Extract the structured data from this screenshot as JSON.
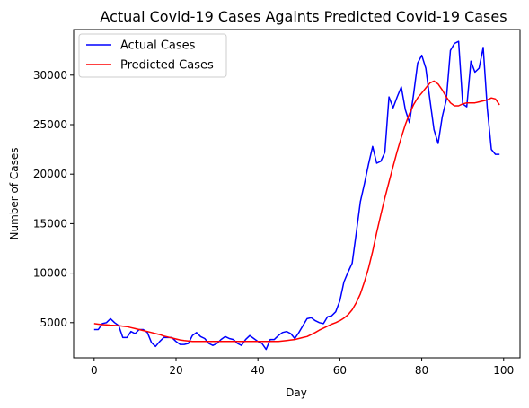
{
  "chart_data": {
    "type": "line",
    "title": "Actual Covid-19 Cases Againts Predicted Covid-19 Cases",
    "xlabel": "Day",
    "ylabel": "Number of Cases",
    "xlim": [
      -5,
      104
    ],
    "ylim": [
      1450,
      34600
    ],
    "xticks": [
      0,
      20,
      40,
      60,
      80,
      100
    ],
    "yticks": [
      5000,
      10000,
      15000,
      20000,
      25000,
      30000
    ],
    "grid": false,
    "legend_position": "upper-left",
    "series": [
      {
        "name": "Actual Cases",
        "color": "#0000ff",
        "x": [
          0,
          1,
          2,
          3,
          4,
          5,
          6,
          7,
          8,
          9,
          10,
          11,
          12,
          13,
          14,
          15,
          16,
          17,
          18,
          19,
          20,
          21,
          22,
          23,
          24,
          25,
          26,
          27,
          28,
          29,
          30,
          31,
          32,
          33,
          34,
          35,
          36,
          37,
          38,
          39,
          40,
          41,
          42,
          43,
          44,
          45,
          46,
          47,
          48,
          49,
          50,
          51,
          52,
          53,
          54,
          55,
          56,
          57,
          58,
          59,
          60,
          61,
          62,
          63,
          64,
          65,
          66,
          67,
          68,
          69,
          70,
          71,
          72,
          73,
          74,
          75,
          76,
          77,
          78,
          79,
          80,
          81,
          82,
          83,
          84,
          85,
          86,
          87,
          88,
          89,
          90,
          91,
          92,
          93,
          94,
          95,
          96,
          97,
          98,
          99
        ],
        "y": [
          4300,
          4300,
          4900,
          5000,
          5400,
          5000,
          4700,
          3500,
          3500,
          4100,
          3900,
          4300,
          4300,
          4000,
          3000,
          2600,
          3100,
          3500,
          3500,
          3500,
          3100,
          2800,
          2800,
          2900,
          3700,
          4000,
          3600,
          3400,
          2900,
          2700,
          2900,
          3300,
          3600,
          3400,
          3300,
          2900,
          2700,
          3300,
          3700,
          3400,
          3100,
          2900,
          2300,
          3300,
          3300,
          3700,
          4000,
          4100,
          3900,
          3400,
          4000,
          4700,
          5400,
          5500,
          5200,
          5000,
          4900,
          5600,
          5700,
          6100,
          7200,
          9100,
          10100,
          11000,
          14000,
          17200,
          19000,
          21000,
          22800,
          21100,
          21300,
          22200,
          27800,
          26700,
          27800,
          28800,
          26500,
          25200,
          28000,
          31200,
          32000,
          30700,
          27500,
          24500,
          23100,
          25800,
          27500,
          32500,
          33200,
          33400,
          27100,
          26800,
          31400,
          30300,
          30700,
          32800,
          26700,
          22500,
          22000,
          22000
        ],
        "values_end_index": 99
      },
      {
        "name": "Predicted Cases",
        "color": "#ff0000",
        "x": [
          0,
          1,
          2,
          3,
          4,
          5,
          6,
          7,
          8,
          9,
          10,
          11,
          12,
          13,
          14,
          15,
          16,
          17,
          18,
          19,
          20,
          21,
          22,
          23,
          24,
          25,
          26,
          27,
          28,
          29,
          30,
          31,
          32,
          33,
          34,
          35,
          36,
          37,
          38,
          39,
          40,
          41,
          42,
          43,
          44,
          45,
          46,
          47,
          48,
          49,
          50,
          51,
          52,
          53,
          54,
          55,
          56,
          57,
          58,
          59,
          60,
          61,
          62,
          63,
          64,
          65,
          66,
          67,
          68,
          69,
          70,
          71,
          72,
          73,
          74,
          75,
          76,
          77,
          78,
          79,
          80,
          81,
          82,
          83,
          84,
          85,
          86,
          87,
          88,
          89,
          90,
          91,
          92,
          93,
          94,
          95,
          96,
          97,
          98,
          99
        ],
        "y": [
          4900,
          4850,
          4800,
          4780,
          4750,
          4720,
          4700,
          4650,
          4600,
          4500,
          4400,
          4300,
          4200,
          4100,
          4000,
          3900,
          3800,
          3650,
          3550,
          3450,
          3350,
          3250,
          3200,
          3150,
          3100,
          3100,
          3100,
          3100,
          3100,
          3100,
          3100,
          3100,
          3100,
          3100,
          3100,
          3100,
          3100,
          3100,
          3100,
          3100,
          3100,
          3100,
          3100,
          3100,
          3100,
          3100,
          3150,
          3200,
          3250,
          3300,
          3400,
          3500,
          3600,
          3800,
          4000,
          4250,
          4450,
          4650,
          4850,
          5000,
          5200,
          5450,
          5800,
          6300,
          7000,
          7900,
          9100,
          10500,
          12200,
          14100,
          15900,
          17600,
          19200,
          20800,
          22300,
          23700,
          25000,
          26100,
          27000,
          27700,
          28200,
          28700,
          29200,
          29400,
          29100,
          28500,
          27800,
          27200,
          26900,
          26900,
          27100,
          27200,
          27200,
          27200,
          27300,
          27400,
          27500,
          27700,
          27600,
          27000
        ]
      }
    ]
  }
}
